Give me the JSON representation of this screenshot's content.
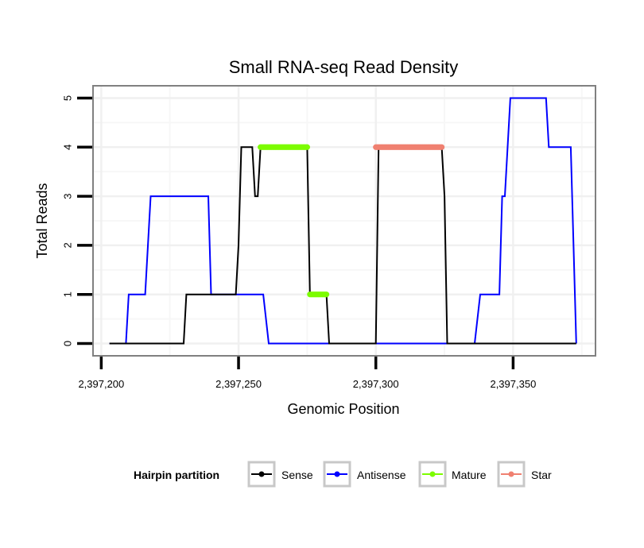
{
  "chart_data": {
    "type": "line",
    "title": "Small RNA-seq Read Density",
    "xlabel": "Genomic Position",
    "ylabel": "Total Reads",
    "xlim": [
      2397197,
      2397380
    ],
    "ylim": [
      -0.25,
      5.25
    ],
    "x_ticks": [
      {
        "value": 2397200,
        "label": "2,397,200"
      },
      {
        "value": 2397250,
        "label": "2,397,250"
      },
      {
        "value": 2397300,
        "label": "2,397,300"
      },
      {
        "value": 2397350,
        "label": "2,397,350"
      }
    ],
    "y_ticks": [
      {
        "value": 0,
        "label": "0"
      },
      {
        "value": 1,
        "label": "1"
      },
      {
        "value": 2,
        "label": "2"
      },
      {
        "value": 3,
        "label": "3"
      },
      {
        "value": 4,
        "label": "4"
      },
      {
        "value": 5,
        "label": "5"
      }
    ],
    "grid": true,
    "series": [
      {
        "name": "Antisense",
        "key": "antisense",
        "color": "#0000ff",
        "style": "line",
        "points": [
          [
            2397203,
            0
          ],
          [
            2397209,
            0
          ],
          [
            2397210,
            1
          ],
          [
            2397216,
            1
          ],
          [
            2397218,
            3
          ],
          [
            2397239,
            3
          ],
          [
            2397240,
            1
          ],
          [
            2397259,
            1
          ],
          [
            2397261,
            0
          ],
          [
            2397336,
            0
          ],
          [
            2397338,
            1
          ],
          [
            2397345,
            1
          ],
          [
            2397346,
            3
          ],
          [
            2397347,
            3
          ],
          [
            2397349,
            5
          ],
          [
            2397362,
            5
          ],
          [
            2397363,
            4
          ],
          [
            2397371,
            4
          ],
          [
            2397373,
            0
          ]
        ]
      },
      {
        "name": "Sense",
        "key": "sense",
        "color": "#000000",
        "style": "line",
        "points": [
          [
            2397203,
            0
          ],
          [
            2397230,
            0
          ],
          [
            2397231,
            1
          ],
          [
            2397249,
            1
          ],
          [
            2397250,
            2
          ],
          [
            2397251,
            4
          ],
          [
            2397255,
            4
          ],
          [
            2397256,
            3
          ],
          [
            2397257,
            3
          ],
          [
            2397258,
            4
          ],
          [
            2397275,
            4
          ],
          [
            2397276,
            1
          ],
          [
            2397282,
            1
          ],
          [
            2397283,
            0
          ],
          [
            2397300,
            0
          ],
          [
            2397301,
            4
          ],
          [
            2397324,
            4
          ],
          [
            2397325,
            3
          ],
          [
            2397326,
            0
          ],
          [
            2397373,
            0
          ]
        ]
      },
      {
        "name": "Mature",
        "key": "mature",
        "color": "#7cfc00",
        "style": "dots",
        "segments": [
          {
            "x_start": 2397258,
            "x_end": 2397275,
            "y": 4
          },
          {
            "x_start": 2397276,
            "x_end": 2397282,
            "y": 1
          }
        ]
      },
      {
        "name": "Star",
        "key": "star",
        "color": "#f08070",
        "style": "dots",
        "segments": [
          {
            "x_start": 2397300,
            "x_end": 2397324,
            "y": 4
          }
        ]
      }
    ],
    "legend": {
      "title": "Hairpin partition",
      "position": "bottom",
      "entries": [
        {
          "label": "Sense",
          "key": "sense"
        },
        {
          "label": "Antisense",
          "key": "antisense"
        },
        {
          "label": "Mature",
          "key": "mature"
        },
        {
          "label": "Star",
          "key": "star"
        }
      ]
    }
  }
}
